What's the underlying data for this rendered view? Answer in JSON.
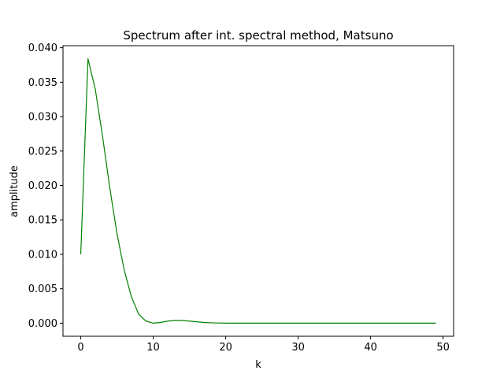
{
  "chart_data": {
    "type": "line",
    "title": "Spectrum after int.  spectral method, Matsuno",
    "xlabel": "k",
    "ylabel": "amplitude",
    "xlim": [
      -2.45,
      51.45
    ],
    "ylim": [
      -0.0019,
      0.0403
    ],
    "xticks": [
      0,
      10,
      20,
      30,
      40,
      50
    ],
    "xtick_labels": [
      "0",
      "10",
      "20",
      "30",
      "40",
      "50"
    ],
    "yticks": [
      0.0,
      0.005,
      0.01,
      0.015,
      0.02,
      0.025,
      0.03,
      0.035,
      0.04
    ],
    "ytick_labels": [
      "0.000",
      "0.005",
      "0.010",
      "0.015",
      "0.020",
      "0.025",
      "0.030",
      "0.035",
      "0.040"
    ],
    "grid": false,
    "series": [
      {
        "color": "#008000",
        "x": [
          0,
          1,
          2,
          3,
          4,
          5,
          6,
          7,
          8,
          9,
          10,
          11,
          12,
          13,
          14,
          15,
          16,
          17,
          18,
          19,
          20,
          21,
          22,
          23,
          24,
          25,
          26,
          27,
          28,
          29,
          30,
          31,
          32,
          33,
          34,
          35,
          36,
          37,
          38,
          39,
          40,
          41,
          42,
          43,
          44,
          45,
          46,
          47,
          48,
          49
        ],
        "y": [
          0.01,
          0.0384,
          0.034,
          0.0272,
          0.0197,
          0.013,
          0.0077,
          0.0038,
          0.0013,
          0.0003,
          0.0,
          0.0001,
          0.0003,
          0.0004,
          0.0004,
          0.0003,
          0.0002,
          0.0001,
          5e-05,
          2e-05,
          0,
          0,
          0,
          0,
          0,
          0,
          0,
          0,
          0,
          0,
          0,
          0,
          0,
          0,
          0,
          0,
          0,
          0,
          0,
          0,
          0,
          0,
          0,
          0,
          0,
          0,
          0,
          0,
          0,
          0
        ]
      }
    ]
  }
}
